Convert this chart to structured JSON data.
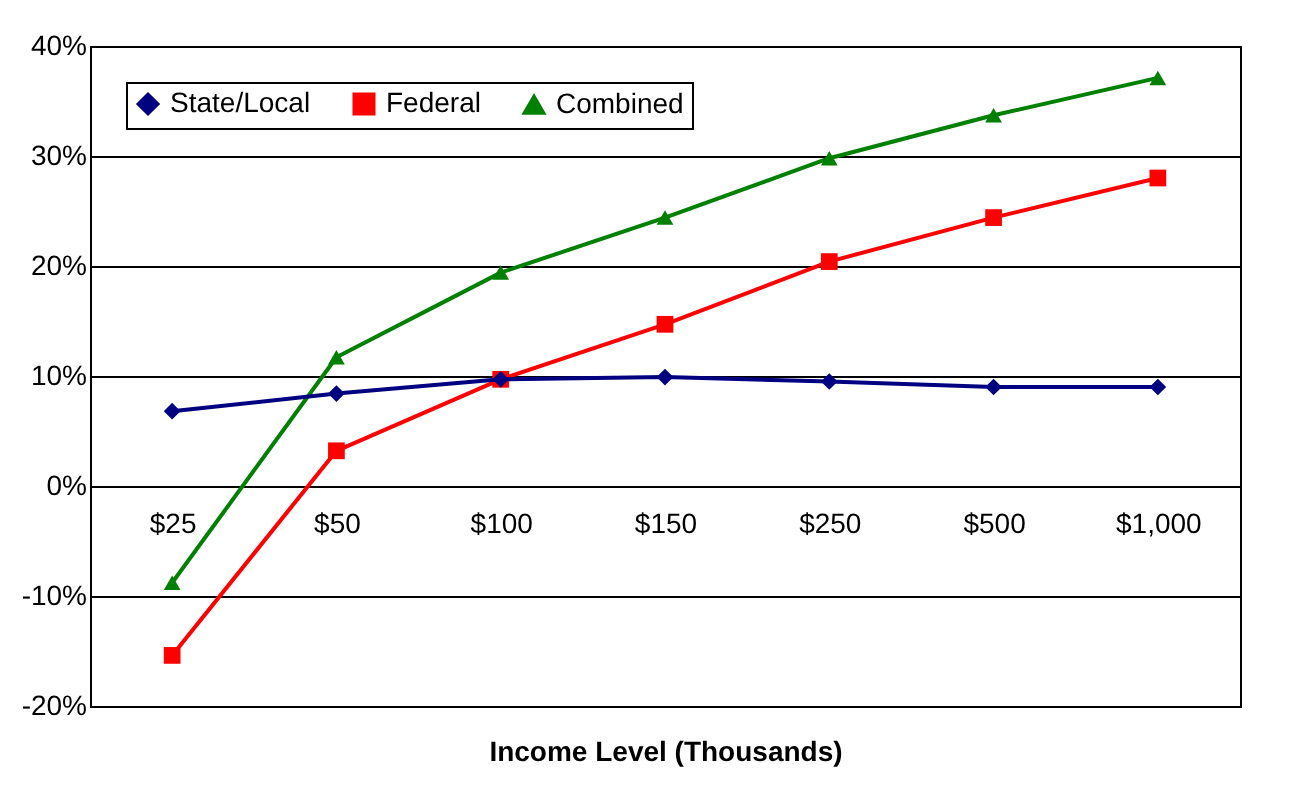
{
  "chart_data": {
    "type": "line",
    "xlabel": "Income Level (Thousands)",
    "categories": [
      "$25",
      "$50",
      "$100",
      "$150",
      "$250",
      "$500",
      "$1,000"
    ],
    "series": [
      {
        "name": "State/Local",
        "color": "#000080",
        "marker": "diamond",
        "values": [
          6.8,
          8.4,
          9.7,
          9.9,
          9.5,
          9.0,
          9.0
        ]
      },
      {
        "name": "Federal",
        "color": "#ff0000",
        "marker": "square",
        "values": [
          -15.4,
          3.2,
          9.7,
          14.7,
          20.4,
          24.4,
          28.0
        ]
      },
      {
        "name": "Combined",
        "color": "#008000",
        "marker": "triangle",
        "values": [
          -8.8,
          11.7,
          19.4,
          24.4,
          29.8,
          33.7,
          37.1
        ]
      }
    ],
    "ylim": [
      -20,
      40
    ],
    "yticks": [
      {
        "value": -20,
        "label": "-20%"
      },
      {
        "value": -10,
        "label": "-10%"
      },
      {
        "value": 0,
        "label": "0%"
      },
      {
        "value": 10,
        "label": "10%"
      },
      {
        "value": 20,
        "label": "20%"
      },
      {
        "value": 30,
        "label": "30%"
      },
      {
        "value": 40,
        "label": "40%"
      }
    ],
    "grid": "y",
    "legend": "top left",
    "line_style": "solid"
  }
}
